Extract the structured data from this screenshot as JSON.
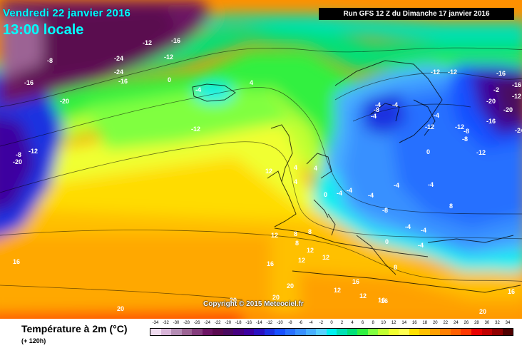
{
  "header": {
    "date": "Vendredi 22 janvier 2016",
    "time": "13:00 locale",
    "run": "Run GFS 12 Z du Dimanche 17 janvier 2016"
  },
  "copyright": "Copyright © 2015 Meteociel.fr",
  "legend": {
    "title": "Température à 2m (°C)",
    "subtitle": "(+ 120h)",
    "ticks": [
      "-34",
      "-32",
      "-30",
      "-28",
      "-26",
      "-24",
      "-22",
      "-20",
      "-18",
      "-16",
      "-14",
      "-12",
      "-10",
      "-8",
      "-6",
      "-4",
      "-2",
      "0",
      "2",
      "4",
      "6",
      "8",
      "10",
      "12",
      "14",
      "16",
      "18",
      "20",
      "22",
      "24",
      "26",
      "28",
      "30",
      "32",
      "34"
    ],
    "colors": [
      "#f0dcf0",
      "#d8b4d8",
      "#b48cb4",
      "#9c6494",
      "#843c7c",
      "#6c1464",
      "#5a0a50",
      "#4a0a60",
      "#460080",
      "#3c00a0",
      "#2a10c0",
      "#1c30e0",
      "#1850ff",
      "#2870ff",
      "#3890ff",
      "#48b0ff",
      "#58d0ff",
      "#00f0f0",
      "#00e0b4",
      "#00e078",
      "#30f040",
      "#80ff40",
      "#c0ff30",
      "#f0ff30",
      "#ffff50",
      "#ffe000",
      "#ffc000",
      "#ffa000",
      "#ff8000",
      "#ff6000",
      "#ff3800",
      "#e80000",
      "#c00000",
      "#900000",
      "#500000"
    ]
  },
  "map_labels": [
    "-8",
    "-16",
    "-20",
    "-24",
    "-12",
    "-16",
    "-12",
    "-24",
    "-16",
    "-20",
    "0",
    "-4",
    "-12",
    "-8",
    "-12",
    "-12",
    "-12",
    "-16",
    "-2",
    "-16",
    "-12",
    "-20",
    "-20",
    "-24",
    "-16",
    "-12",
    "-8",
    "-4",
    "-8",
    "-12",
    "-4",
    "-8",
    "0",
    "-4",
    "-4",
    "-12",
    "4",
    "4",
    "4",
    "-4",
    "-4",
    "-8",
    "-4",
    "-4",
    "0",
    "-4",
    "4",
    "12",
    "12",
    "8",
    "8",
    "-4",
    "-4",
    "0",
    "-4",
    "8",
    "12",
    "12",
    "16",
    "12",
    "16",
    "8",
    "12",
    "16",
    "8",
    "12",
    "16",
    "16",
    "20",
    "20",
    "20",
    "20",
    "20",
    "16"
  ],
  "map_tick_labels": {
    "title": "Vendredi 22 janvier 2016",
    "run": "Run GFS 12 Z du Dimanche 17 janvier 2016"
  }
}
